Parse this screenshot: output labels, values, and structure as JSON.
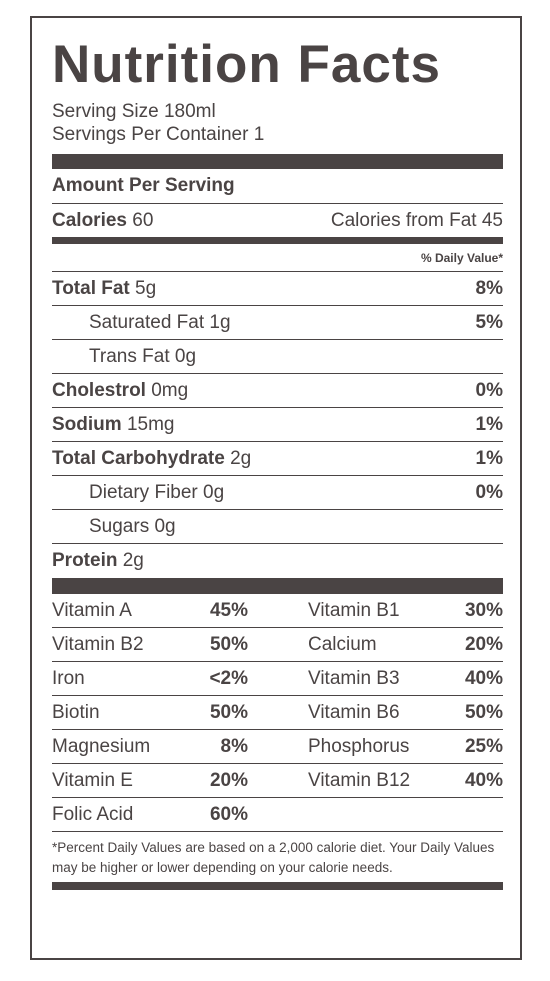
{
  "label": {
    "title": "Nutrition Facts",
    "serving_size": "Serving Size 180ml",
    "servings_per_container": "Servings Per Container 1",
    "amount_per_serving": "Amount Per Serving",
    "calories_label": "Calories",
    "calories_value": "60",
    "calories_from_fat": "Calories from Fat 45",
    "daily_value_header": "% Daily Value*",
    "nutrients": [
      {
        "label": "Total Fat",
        "amount": "5g",
        "pct": "8%"
      },
      {
        "label": "Saturated Fat",
        "amount": "1g",
        "pct": "5%"
      },
      {
        "label": "Trans Fat",
        "amount": "0g",
        "pct": ""
      },
      {
        "label": "Cholestrol",
        "amount": "0mg",
        "pct": "0%"
      },
      {
        "label": "Sodium",
        "amount": "15mg",
        "pct": "1%"
      },
      {
        "label": "Total Carbohydrate",
        "amount": "2g",
        "pct": "1%"
      },
      {
        "label": "Dietary Fiber",
        "amount": "0g",
        "pct": "0%"
      },
      {
        "label": "Sugars",
        "amount": "0g",
        "pct": ""
      },
      {
        "label": "Protein",
        "amount": "2g",
        "pct": ""
      }
    ],
    "vitamins": [
      [
        {
          "name": "Vitamin A",
          "pct": "45%"
        },
        {
          "name": "Vitamin B1",
          "pct": "30%"
        }
      ],
      [
        {
          "name": "Vitamin B2",
          "pct": "50%"
        },
        {
          "name": "Calcium",
          "pct": "20%"
        }
      ],
      [
        {
          "name": "Iron",
          "pct": "<2%"
        },
        {
          "name": "Vitamin B3",
          "pct": "40%"
        }
      ],
      [
        {
          "name": "Biotin",
          "pct": "50%"
        },
        {
          "name": "Vitamin B6",
          "pct": "50%"
        }
      ],
      [
        {
          "name": "Magnesium",
          "pct": "8%"
        },
        {
          "name": "Phosphorus",
          "pct": "25%"
        }
      ],
      [
        {
          "name": "Vitamin E",
          "pct": "20%"
        },
        {
          "name": "Vitamin B12",
          "pct": "40%"
        }
      ],
      [
        {
          "name": "Folic Acid",
          "pct": "60%"
        }
      ]
    ],
    "footnote": "*Percent Daily Values are based on a 2,000 calorie diet. Your Daily Values may be higher or lower depending on your calorie needs."
  },
  "colors": {
    "ink": "#4a4444",
    "background": "#ffffff"
  }
}
